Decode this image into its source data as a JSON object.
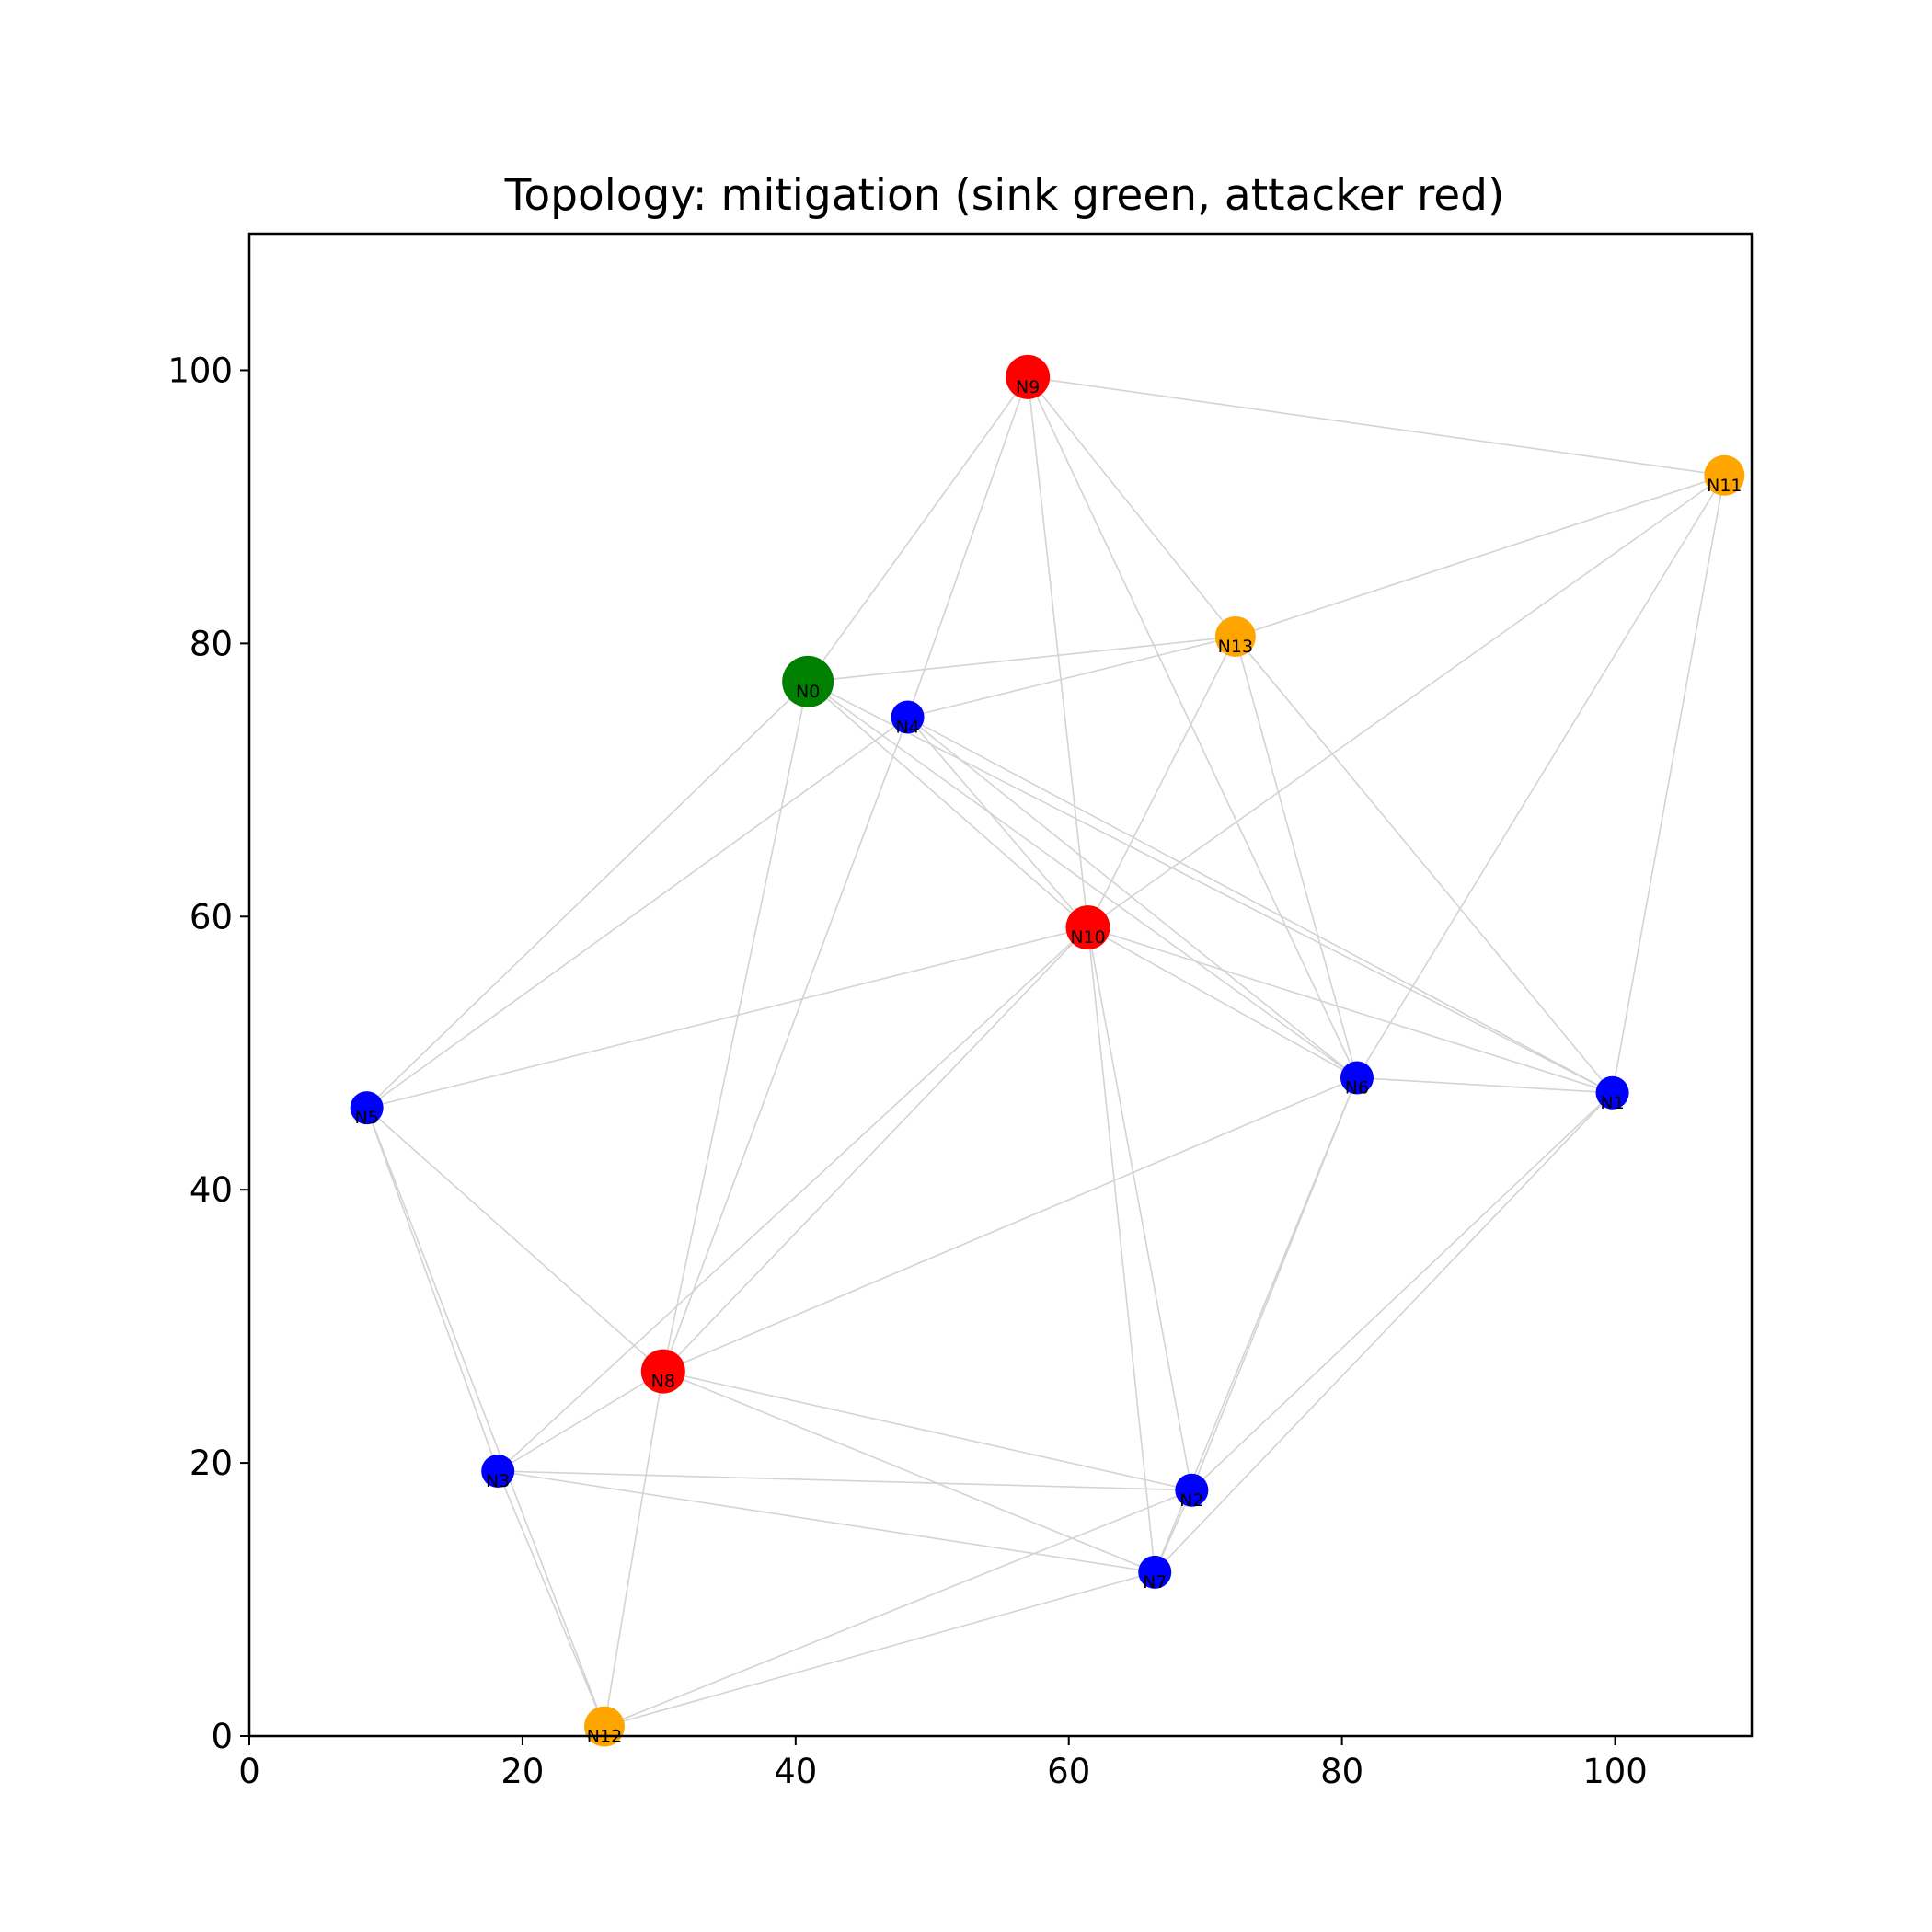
{
  "chart_data": {
    "type": "scatter",
    "title": "Topology: mitigation (sink green, attacker red)",
    "xlabel": "",
    "ylabel": "",
    "xlim": [
      0,
      110
    ],
    "ylim": [
      0,
      110
    ],
    "x_ticks": [
      0,
      20,
      40,
      60,
      80,
      100
    ],
    "y_ticks": [
      0,
      20,
      40,
      60,
      80,
      100
    ],
    "grid": false,
    "edge_color": "#d3d3d3",
    "colors": {
      "sink": "#008000",
      "attacker": "#ff0000",
      "normal": "#0000ff",
      "other": "#ffa500"
    },
    "nodes": [
      {
        "id": "N0",
        "x": 40.9,
        "y": 77.2,
        "role": "sink"
      },
      {
        "id": "N1",
        "x": 99.8,
        "y": 47.1,
        "role": "normal"
      },
      {
        "id": "N2",
        "x": 69.0,
        "y": 18.0,
        "role": "normal"
      },
      {
        "id": "N3",
        "x": 18.2,
        "y": 19.4,
        "role": "normal"
      },
      {
        "id": "N4",
        "x": 48.2,
        "y": 74.6,
        "role": "normal"
      },
      {
        "id": "N5",
        "x": 8.6,
        "y": 46.0,
        "role": "normal"
      },
      {
        "id": "N6",
        "x": 81.1,
        "y": 48.2,
        "role": "normal"
      },
      {
        "id": "N7",
        "x": 66.3,
        "y": 12.0,
        "role": "normal"
      },
      {
        "id": "N8",
        "x": 30.3,
        "y": 26.7,
        "role": "attacker"
      },
      {
        "id": "N9",
        "x": 57.0,
        "y": 99.5,
        "role": "attacker"
      },
      {
        "id": "N10",
        "x": 61.4,
        "y": 59.2,
        "role": "attacker"
      },
      {
        "id": "N11",
        "x": 108.0,
        "y": 92.3,
        "role": "other"
      },
      {
        "id": "N12",
        "x": 26.0,
        "y": 0.7,
        "role": "other"
      },
      {
        "id": "N13",
        "x": 72.2,
        "y": 80.5,
        "role": "other"
      }
    ],
    "edges": [
      [
        "N9",
        "N11"
      ],
      [
        "N9",
        "N0"
      ],
      [
        "N9",
        "N4"
      ],
      [
        "N9",
        "N13"
      ],
      [
        "N9",
        "N6"
      ],
      [
        "N9",
        "N10"
      ],
      [
        "N11",
        "N13"
      ],
      [
        "N11",
        "N10"
      ],
      [
        "N11",
        "N6"
      ],
      [
        "N11",
        "N1"
      ],
      [
        "N0",
        "N13"
      ],
      [
        "N0",
        "N5"
      ],
      [
        "N0",
        "N8"
      ],
      [
        "N0",
        "N10"
      ],
      [
        "N0",
        "N6"
      ],
      [
        "N0",
        "N1"
      ],
      [
        "N4",
        "N13"
      ],
      [
        "N4",
        "N5"
      ],
      [
        "N4",
        "N8"
      ],
      [
        "N4",
        "N10"
      ],
      [
        "N4",
        "N6"
      ],
      [
        "N4",
        "N1"
      ],
      [
        "N13",
        "N10"
      ],
      [
        "N13",
        "N6"
      ],
      [
        "N13",
        "N1"
      ],
      [
        "N10",
        "N5"
      ],
      [
        "N10",
        "N8"
      ],
      [
        "N10",
        "N3"
      ],
      [
        "N10",
        "N6"
      ],
      [
        "N10",
        "N1"
      ],
      [
        "N10",
        "N7"
      ],
      [
        "N10",
        "N2"
      ],
      [
        "N6",
        "N1"
      ],
      [
        "N6",
        "N8"
      ],
      [
        "N6",
        "N2"
      ],
      [
        "N6",
        "N7"
      ],
      [
        "N1",
        "N2"
      ],
      [
        "N1",
        "N7"
      ],
      [
        "N5",
        "N8"
      ],
      [
        "N5",
        "N3"
      ],
      [
        "N5",
        "N12"
      ],
      [
        "N8",
        "N3"
      ],
      [
        "N8",
        "N2"
      ],
      [
        "N8",
        "N7"
      ],
      [
        "N8",
        "N12"
      ],
      [
        "N3",
        "N2"
      ],
      [
        "N3",
        "N7"
      ],
      [
        "N3",
        "N12"
      ],
      [
        "N2",
        "N7"
      ],
      [
        "N2",
        "N12"
      ],
      [
        "N7",
        "N12"
      ]
    ]
  }
}
